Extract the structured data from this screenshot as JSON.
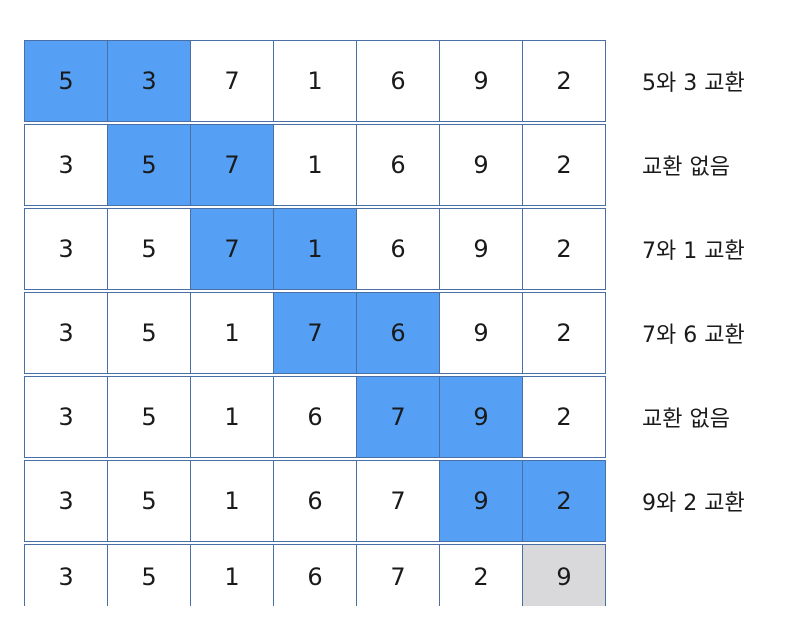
{
  "colors": {
    "highlight": "#55a0f5",
    "settled": "#d9d9db",
    "border": "#4a6fa5"
  },
  "rows": [
    {
      "values": [
        "5",
        "3",
        "7",
        "1",
        "6",
        "9",
        "2"
      ],
      "highlight": [
        0,
        1
      ],
      "caption": "5와 3 교환"
    },
    {
      "values": [
        "3",
        "5",
        "7",
        "1",
        "6",
        "9",
        "2"
      ],
      "highlight": [
        1,
        2
      ],
      "caption": "교환 없음"
    },
    {
      "values": [
        "3",
        "5",
        "7",
        "1",
        "6",
        "9",
        "2"
      ],
      "highlight": [
        2,
        3
      ],
      "caption": "7와 1 교환"
    },
    {
      "values": [
        "3",
        "5",
        "1",
        "7",
        "6",
        "9",
        "2"
      ],
      "highlight": [
        3,
        4
      ],
      "caption": "7와 6 교환"
    },
    {
      "values": [
        "3",
        "5",
        "1",
        "6",
        "7",
        "9",
        "2"
      ],
      "highlight": [
        4,
        5
      ],
      "caption": "교환 없음"
    },
    {
      "values": [
        "3",
        "5",
        "1",
        "6",
        "7",
        "9",
        "2"
      ],
      "highlight": [
        5,
        6
      ],
      "caption": "9와 2 교환"
    },
    {
      "values": [
        "3",
        "5",
        "1",
        "6",
        "7",
        "2",
        "9"
      ],
      "settled": [
        6
      ],
      "caption": ""
    }
  ]
}
